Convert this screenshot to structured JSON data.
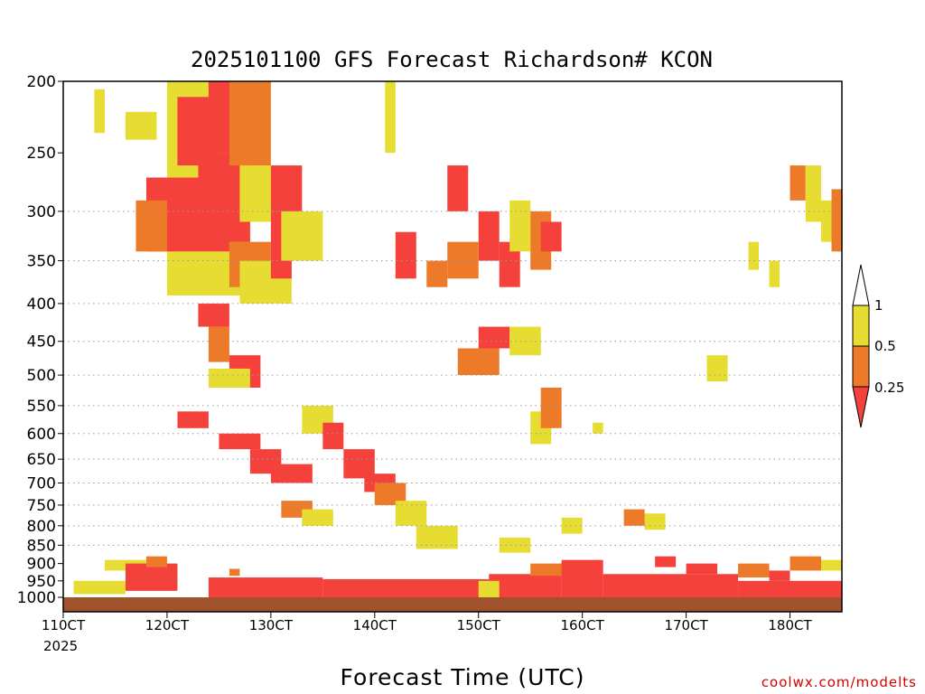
{
  "chart_data": {
    "type": "heatmap",
    "title": "2025101100 GFS Forecast Richardson# KCON",
    "xlabel": "Forecast Time (UTC)",
    "ylabel": "",
    "credit": "coolwx.com/modelts",
    "x_start_label": "110CT",
    "x_year_label": "2025",
    "x_ticks": [
      "110CT",
      "120CT",
      "130CT",
      "140CT",
      "150CT",
      "160CT",
      "170CT",
      "180CT"
    ],
    "x_tick_days": [
      11,
      12,
      13,
      14,
      15,
      16,
      17,
      18
    ],
    "xlim": [
      11,
      18.5
    ],
    "y_ticks": [
      200,
      250,
      300,
      350,
      400,
      450,
      500,
      550,
      600,
      650,
      700,
      750,
      800,
      850,
      900,
      950,
      1000
    ],
    "ylim": [
      1000,
      200
    ],
    "y_scale": "log-pressure",
    "grid": "dotted horizontal at pressure ticks 300-850",
    "legend": {
      "placement": "right",
      "levels": [
        "1",
        "0.5",
        "0.25"
      ],
      "colors": {
        "above_1": "#ffffff",
        "0.5_to_1": "#e6dc32",
        "0.25_to_0.5": "#ec7a28",
        "below_0.25": "#f5413c"
      }
    },
    "surface_color": "#a0522d",
    "regions": [
      {
        "cat": "yellow",
        "x": [
          11.6,
          11.9
        ],
        "p": [
          220,
          240
        ]
      },
      {
        "cat": "yellow",
        "x": [
          11.3,
          11.4
        ],
        "p": [
          205,
          235
        ]
      },
      {
        "cat": "yellow",
        "x": [
          12.0,
          12.8
        ],
        "p": [
          200,
          390
        ]
      },
      {
        "cat": "red",
        "x": [
          11.8,
          12.6
        ],
        "p": [
          270,
          340
        ]
      },
      {
        "cat": "red",
        "x": [
          12.1,
          12.5
        ],
        "p": [
          210,
          260
        ]
      },
      {
        "cat": "red",
        "x": [
          12.4,
          12.9
        ],
        "p": [
          200,
          250
        ]
      },
      {
        "cat": "orange",
        "x": [
          11.7,
          12.0
        ],
        "p": [
          290,
          340
        ]
      },
      {
        "cat": "red",
        "x": [
          12.3,
          12.8
        ],
        "p": [
          250,
          330
        ]
      },
      {
        "cat": "orange",
        "x": [
          12.6,
          13.0
        ],
        "p": [
          200,
          260
        ]
      },
      {
        "cat": "yellow",
        "x": [
          12.7,
          13.0
        ],
        "p": [
          260,
          310
        ]
      },
      {
        "cat": "yellow",
        "x": [
          13.0,
          13.2
        ],
        "p": [
          270,
          300
        ]
      },
      {
        "cat": "red",
        "x": [
          13.0,
          13.3
        ],
        "p": [
          260,
          300
        ]
      },
      {
        "cat": "orange",
        "x": [
          12.6,
          13.0
        ],
        "p": [
          330,
          380
        ]
      },
      {
        "cat": "yellow",
        "x": [
          12.7,
          13.2
        ],
        "p": [
          350,
          400
        ]
      },
      {
        "cat": "red",
        "x": [
          13.0,
          13.2
        ],
        "p": [
          300,
          370
        ]
      },
      {
        "cat": "yellow",
        "x": [
          13.1,
          13.5
        ],
        "p": [
          300,
          350
        ]
      },
      {
        "cat": "red",
        "x": [
          12.3,
          12.6
        ],
        "p": [
          400,
          430
        ]
      },
      {
        "cat": "orange",
        "x": [
          12.4,
          12.6
        ],
        "p": [
          430,
          480
        ]
      },
      {
        "cat": "red",
        "x": [
          12.6,
          12.9
        ],
        "p": [
          470,
          520
        ]
      },
      {
        "cat": "yellow",
        "x": [
          12.4,
          12.8
        ],
        "p": [
          490,
          520
        ]
      },
      {
        "cat": "red",
        "x": [
          12.1,
          12.4
        ],
        "p": [
          560,
          590
        ]
      },
      {
        "cat": "red",
        "x": [
          12.5,
          12.9
        ],
        "p": [
          600,
          630
        ]
      },
      {
        "cat": "red",
        "x": [
          12.8,
          13.1
        ],
        "p": [
          630,
          680
        ]
      },
      {
        "cat": "red",
        "x": [
          13.0,
          13.4
        ],
        "p": [
          660,
          700
        ]
      },
      {
        "cat": "orange",
        "x": [
          13.1,
          13.4
        ],
        "p": [
          740,
          780
        ]
      },
      {
        "cat": "yellow",
        "x": [
          13.3,
          13.6
        ],
        "p": [
          760,
          800
        ]
      },
      {
        "cat": "yellow",
        "x": [
          13.3,
          13.6
        ],
        "p": [
          550,
          600
        ]
      },
      {
        "cat": "red",
        "x": [
          13.5,
          13.7
        ],
        "p": [
          580,
          630
        ]
      },
      {
        "cat": "red",
        "x": [
          13.7,
          14.0
        ],
        "p": [
          630,
          690
        ]
      },
      {
        "cat": "red",
        "x": [
          13.9,
          14.2
        ],
        "p": [
          680,
          720
        ]
      },
      {
        "cat": "orange",
        "x": [
          14.0,
          14.3
        ],
        "p": [
          700,
          750
        ]
      },
      {
        "cat": "yellow",
        "x": [
          14.2,
          14.5
        ],
        "p": [
          740,
          800
        ]
      },
      {
        "cat": "yellow",
        "x": [
          14.4,
          14.8
        ],
        "p": [
          800,
          860
        ]
      },
      {
        "cat": "yellow",
        "x": [
          14.1,
          14.2
        ],
        "p": [
          200,
          250
        ]
      },
      {
        "cat": "red",
        "x": [
          14.2,
          14.4
        ],
        "p": [
          320,
          370
        ]
      },
      {
        "cat": "orange",
        "x": [
          14.5,
          14.7
        ],
        "p": [
          350,
          380
        ]
      },
      {
        "cat": "red",
        "x": [
          14.7,
          14.9
        ],
        "p": [
          260,
          300
        ]
      },
      {
        "cat": "red",
        "x": [
          15.0,
          15.2
        ],
        "p": [
          300,
          350
        ]
      },
      {
        "cat": "orange",
        "x": [
          14.7,
          15.0
        ],
        "p": [
          330,
          370
        ]
      },
      {
        "cat": "red",
        "x": [
          15.2,
          15.4
        ],
        "p": [
          330,
          380
        ]
      },
      {
        "cat": "yellow",
        "x": [
          15.3,
          15.5
        ],
        "p": [
          290,
          340
        ]
      },
      {
        "cat": "orange",
        "x": [
          15.5,
          15.7
        ],
        "p": [
          300,
          360
        ]
      },
      {
        "cat": "red",
        "x": [
          15.6,
          15.8
        ],
        "p": [
          310,
          340
        ]
      },
      {
        "cat": "red",
        "x": [
          15.0,
          15.3
        ],
        "p": [
          430,
          460
        ]
      },
      {
        "cat": "orange",
        "x": [
          14.8,
          15.2
        ],
        "p": [
          460,
          500
        ]
      },
      {
        "cat": "yellow",
        "x": [
          15.3,
          15.6
        ],
        "p": [
          430,
          470
        ]
      },
      {
        "cat": "yellow",
        "x": [
          15.5,
          15.7
        ],
        "p": [
          560,
          620
        ]
      },
      {
        "cat": "orange",
        "x": [
          15.6,
          15.8
        ],
        "p": [
          520,
          590
        ]
      },
      {
        "cat": "yellow",
        "x": [
          16.1,
          16.2
        ],
        "p": [
          580,
          600
        ]
      },
      {
        "cat": "yellow",
        "x": [
          15.8,
          16.0
        ],
        "p": [
          780,
          820
        ]
      },
      {
        "cat": "yellow",
        "x": [
          15.2,
          15.5
        ],
        "p": [
          830,
          870
        ]
      },
      {
        "cat": "yellow",
        "x": [
          16.6,
          16.8
        ],
        "p": [
          770,
          810
        ]
      },
      {
        "cat": "orange",
        "x": [
          16.4,
          16.6
        ],
        "p": [
          760,
          800
        ]
      },
      {
        "cat": "yellow",
        "x": [
          17.2,
          17.4
        ],
        "p": [
          470,
          510
        ]
      },
      {
        "cat": "yellow",
        "x": [
          17.6,
          17.7
        ],
        "p": [
          330,
          360
        ]
      },
      {
        "cat": "yellow",
        "x": [
          17.8,
          17.9
        ],
        "p": [
          350,
          380
        ]
      },
      {
        "cat": "orange",
        "x": [
          18.0,
          18.15
        ],
        "p": [
          260,
          290
        ]
      },
      {
        "cat": "yellow",
        "x": [
          18.15,
          18.3
        ],
        "p": [
          260,
          310
        ]
      },
      {
        "cat": "yellow",
        "x": [
          18.3,
          18.5
        ],
        "p": [
          290,
          330
        ]
      },
      {
        "cat": "orange",
        "x": [
          18.4,
          18.5
        ],
        "p": [
          280,
          340
        ]
      },
      {
        "cat": "yellow",
        "x": [
          11.4,
          11.8
        ],
        "p": [
          890,
          920
        ]
      },
      {
        "cat": "red",
        "x": [
          11.6,
          12.1
        ],
        "p": [
          900,
          980
        ]
      },
      {
        "cat": "orange",
        "x": [
          11.8,
          12.0
        ],
        "p": [
          880,
          910
        ]
      },
      {
        "cat": "red",
        "x": [
          12.4,
          13.5
        ],
        "p": [
          940,
          1000
        ]
      },
      {
        "cat": "red",
        "x": [
          13.5,
          15.1
        ],
        "p": [
          945,
          1000
        ]
      },
      {
        "cat": "orange",
        "x": [
          12.6,
          12.7
        ],
        "p": [
          915,
          935
        ]
      },
      {
        "cat": "red",
        "x": [
          15.1,
          15.8
        ],
        "p": [
          930,
          1000
        ]
      },
      {
        "cat": "orange",
        "x": [
          15.5,
          15.9
        ],
        "p": [
          900,
          935
        ]
      },
      {
        "cat": "red",
        "x": [
          15.8,
          16.2
        ],
        "p": [
          890,
          1000
        ]
      },
      {
        "cat": "red",
        "x": [
          16.2,
          17.5
        ],
        "p": [
          930,
          1000
        ]
      },
      {
        "cat": "red",
        "x": [
          16.7,
          16.9
        ],
        "p": [
          880,
          910
        ]
      },
      {
        "cat": "red",
        "x": [
          17.0,
          17.3
        ],
        "p": [
          900,
          930
        ]
      },
      {
        "cat": "orange",
        "x": [
          17.5,
          17.8
        ],
        "p": [
          900,
          940
        ]
      },
      {
        "cat": "red",
        "x": [
          17.8,
          18.0
        ],
        "p": [
          920,
          950
        ]
      },
      {
        "cat": "orange",
        "x": [
          18.0,
          18.3
        ],
        "p": [
          880,
          920
        ]
      },
      {
        "cat": "yellow",
        "x": [
          18.3,
          18.5
        ],
        "p": [
          890,
          920
        ]
      },
      {
        "cat": "red",
        "x": [
          17.5,
          18.5
        ],
        "p": [
          950,
          1000
        ]
      },
      {
        "cat": "yellow",
        "x": [
          15.0,
          15.2
        ],
        "p": [
          950,
          1000
        ]
      },
      {
        "cat": "yellow",
        "x": [
          11.1,
          11.6
        ],
        "p": [
          950,
          990
        ]
      }
    ]
  }
}
